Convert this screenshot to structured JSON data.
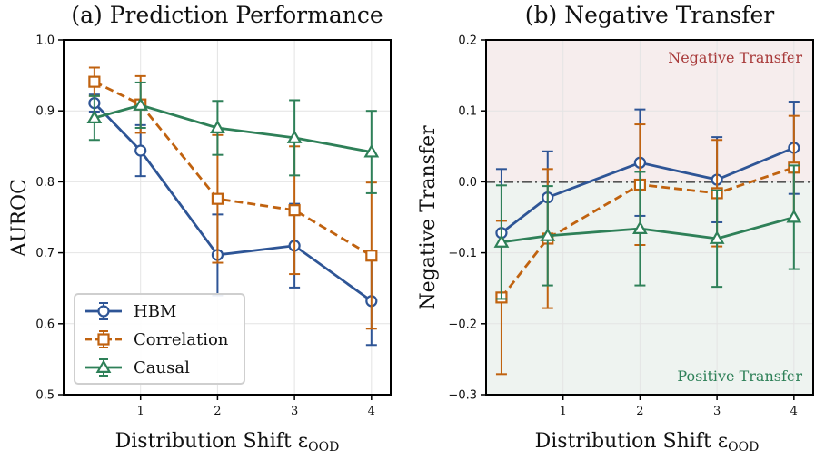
{
  "chart_data": [
    {
      "id": "a",
      "type": "line",
      "title": "(a) Prediction Performance",
      "xlabel": "Distribution Shift ε",
      "xlabel_sub": "OOD",
      "ylabel": "AUROC",
      "xlim": [
        0.0,
        4.25
      ],
      "ylim": [
        0.5,
        1.0
      ],
      "xticks": [
        1,
        2,
        3,
        4
      ],
      "xtick_labels": [
        "1",
        "2",
        "3",
        "4"
      ],
      "yticks": [
        0.5,
        0.6,
        0.7,
        0.8,
        0.9,
        1.0
      ],
      "ytick_labels": [
        "0.5",
        "0.6",
        "0.7",
        "0.8",
        "0.9",
        "1.0"
      ],
      "grid": true,
      "legend_position": "lower-left",
      "legend": [
        "HBM",
        "Correlation",
        "Causal"
      ],
      "series": [
        {
          "name": "HBM",
          "color": "#2e5596",
          "marker": "circle",
          "dash": "solid",
          "x": [
            0.4,
            1.0,
            2.0,
            3.0,
            4.0
          ],
          "y": [
            0.911,
            0.844,
            0.697,
            0.71,
            0.632
          ],
          "err": [
            0.012,
            0.036,
            0.057,
            0.059,
            0.062
          ]
        },
        {
          "name": "Correlation",
          "color": "#c0620f",
          "marker": "square",
          "dash": "dashed",
          "x": [
            0.4,
            1.0,
            2.0,
            3.0,
            4.0
          ],
          "y": [
            0.941,
            0.909,
            0.776,
            0.76,
            0.696
          ],
          "err": [
            0.02,
            0.04,
            0.09,
            0.09,
            0.103
          ]
        },
        {
          "name": "Causal",
          "color": "#2e8058",
          "marker": "triangle",
          "dash": "solid",
          "x": [
            0.4,
            1.0,
            2.0,
            3.0,
            4.0
          ],
          "y": [
            0.89,
            0.908,
            0.876,
            0.862,
            0.842
          ],
          "err": [
            0.031,
            0.032,
            0.038,
            0.053,
            0.058
          ]
        }
      ]
    },
    {
      "id": "b",
      "type": "line",
      "title": "(b) Negative Transfer",
      "xlabel": "Distribution Shift ε",
      "xlabel_sub": "OOD",
      "ylabel": "Negative Transfer",
      "xlim": [
        0.0,
        4.25
      ],
      "ylim": [
        -0.3,
        0.2
      ],
      "xticks": [
        1,
        2,
        3,
        4
      ],
      "xtick_labels": [
        "1",
        "2",
        "3",
        "4"
      ],
      "yticks": [
        -0.3,
        -0.2,
        -0.1,
        0.0,
        0.1,
        0.2
      ],
      "ytick_labels": [
        "−0.3",
        "−0.2",
        "−0.1",
        "0.0",
        "0.1",
        "0.2"
      ],
      "grid": true,
      "reference_line": 0.0,
      "regions": [
        {
          "label": "Negative Transfer",
          "from": 0.0,
          "to": 0.2,
          "fill": "#f6eded",
          "text_color": "#a83a3a",
          "label_position": "top-right"
        },
        {
          "label": "Positive Transfer",
          "from": -0.3,
          "to": 0.0,
          "fill": "#eef3f0",
          "text_color": "#2e8058",
          "label_position": "bottom-right"
        }
      ],
      "series": [
        {
          "name": "HBM",
          "color": "#2e5596",
          "marker": "circle",
          "dash": "solid",
          "x": [
            0.2,
            0.8,
            2.0,
            3.0,
            4.0
          ],
          "y": [
            -0.072,
            -0.022,
            0.027,
            0.003,
            0.048
          ],
          "err": [
            0.09,
            0.065,
            0.075,
            0.06,
            0.065
          ]
        },
        {
          "name": "Correlation",
          "color": "#c0620f",
          "marker": "square",
          "dash": "dashed",
          "x": [
            0.2,
            0.8,
            2.0,
            3.0,
            4.0
          ],
          "y": [
            -0.163,
            -0.08,
            -0.004,
            -0.016,
            0.02
          ],
          "err": [
            0.108,
            0.098,
            0.085,
            0.075,
            0.073
          ]
        },
        {
          "name": "Causal",
          "color": "#2e8058",
          "marker": "triangle",
          "dash": "solid",
          "x": [
            0.2,
            0.8,
            2.0,
            3.0,
            4.0
          ],
          "y": [
            -0.085,
            -0.076,
            -0.066,
            -0.08,
            -0.05
          ],
          "err": [
            0.08,
            0.07,
            0.08,
            0.068,
            0.073
          ]
        }
      ]
    }
  ]
}
